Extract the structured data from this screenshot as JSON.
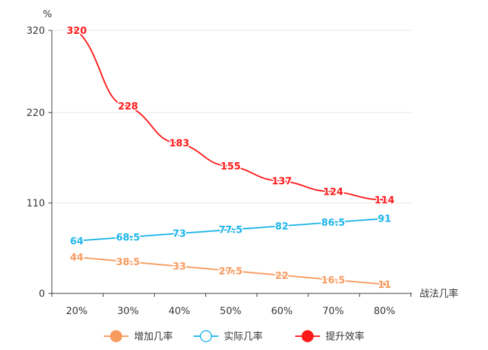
{
  "chart_data": {
    "type": "line",
    "ylabel": "%",
    "xlabel": "战法几率",
    "categories": [
      "20%",
      "30%",
      "40%",
      "50%",
      "60%",
      "70%",
      "80%"
    ],
    "y_ticks": [
      "0",
      "110",
      "220",
      "320"
    ],
    "ylim": [
      0,
      320
    ],
    "grid": true,
    "legend_position": "bottom",
    "series": [
      {
        "name": "增加几率",
        "values": [
          44,
          38.5,
          33,
          27.5,
          22,
          16.5,
          11
        ],
        "labels": [
          "44",
          "38.5",
          "33",
          "27.5",
          "22",
          "16.5",
          "11"
        ],
        "color": "#f79a5e",
        "marker": "filled"
      },
      {
        "name": "实际几率",
        "values": [
          64,
          68.5,
          73,
          77.5,
          82,
          86.5,
          91
        ],
        "labels": [
          "64",
          "68.5",
          "73",
          "77.5",
          "82",
          "86.5",
          "91"
        ],
        "color": "#1eb5ea",
        "marker": "hollow"
      },
      {
        "name": "提升效率",
        "values": [
          320,
          228,
          183,
          155,
          137,
          124,
          114
        ],
        "labels": [
          "320",
          "228",
          "183",
          "155",
          "137",
          "124",
          "114"
        ],
        "color": "#ff1a1a",
        "marker": "filled"
      }
    ]
  }
}
